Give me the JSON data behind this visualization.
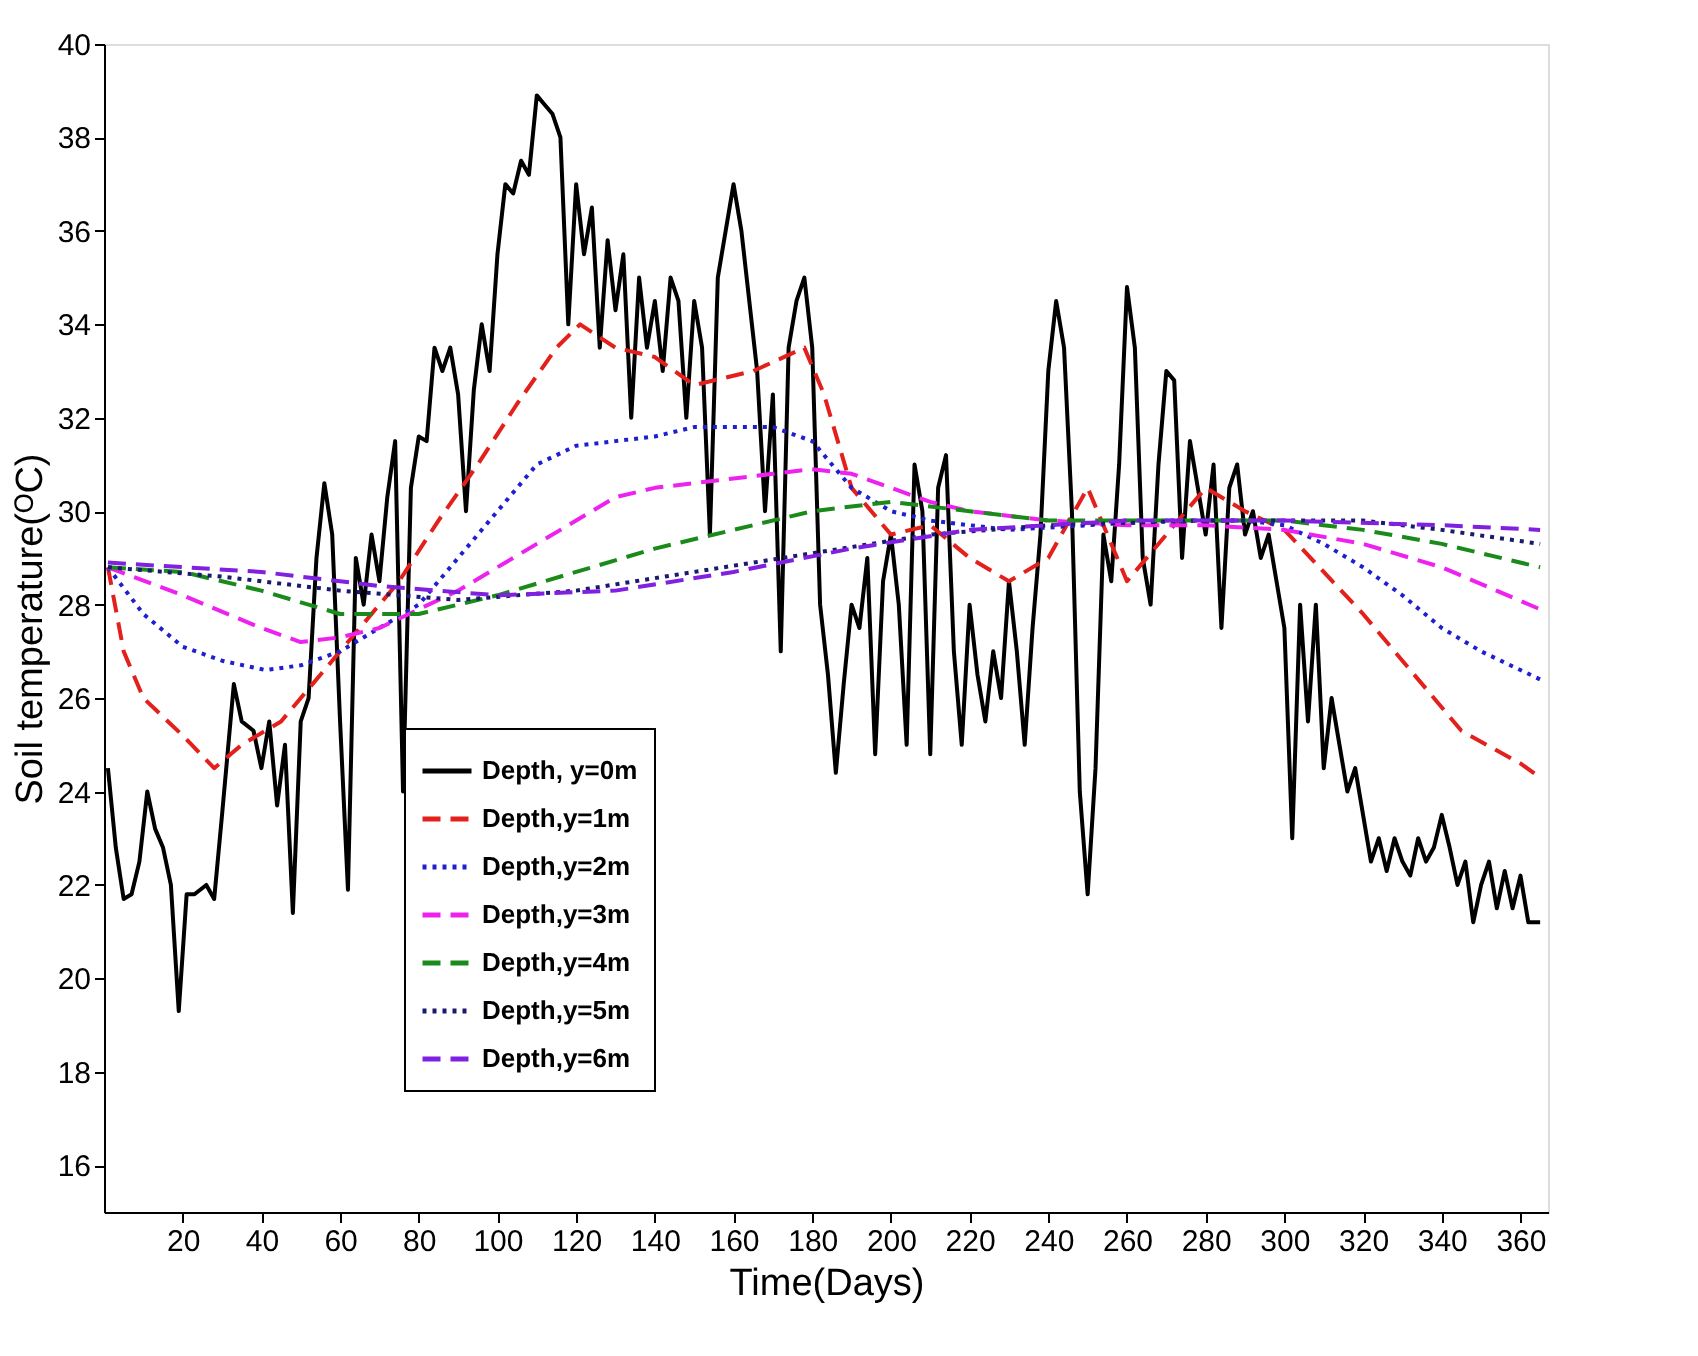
{
  "chart_data": {
    "type": "line",
    "xlabel": "Time(Days)",
    "ylabel": "Soil temperature(ᴼC)",
    "xlim": [
      0,
      367
    ],
    "ylim": [
      15,
      40
    ],
    "xticks": [
      20,
      40,
      60,
      80,
      100,
      120,
      140,
      160,
      180,
      200,
      220,
      240,
      260,
      280,
      300,
      320,
      340,
      360
    ],
    "yticks": [
      16,
      18,
      20,
      22,
      24,
      26,
      28,
      30,
      32,
      34,
      36,
      38,
      40
    ],
    "grid": false,
    "legend": "bottom left",
    "marker": "none",
    "series": [
      {
        "name": "Depth, y=0m",
        "color": "#000000",
        "line_style": "solid",
        "x": [
          1,
          3,
          5,
          7,
          9,
          11,
          13,
          15,
          17,
          19,
          21,
          23,
          26,
          28,
          30,
          33,
          35,
          38,
          40,
          42,
          44,
          46,
          48,
          50,
          52,
          54,
          56,
          58,
          60,
          62,
          64,
          66,
          68,
          70,
          72,
          74,
          76,
          78,
          80,
          82,
          84,
          86,
          88,
          90,
          92,
          94,
          96,
          98,
          100,
          102,
          104,
          106,
          108,
          110,
          112,
          114,
          116,
          118,
          120,
          122,
          124,
          126,
          128,
          130,
          132,
          134,
          136,
          138,
          140,
          142,
          144,
          146,
          148,
          150,
          152,
          154,
          156,
          158,
          160,
          162,
          164,
          166,
          168,
          170,
          172,
          174,
          176,
          178,
          180,
          182,
          184,
          186,
          188,
          190,
          192,
          194,
          196,
          198,
          200,
          202,
          204,
          206,
          208,
          210,
          212,
          214,
          216,
          218,
          220,
          222,
          224,
          226,
          228,
          230,
          232,
          234,
          236,
          238,
          240,
          242,
          244,
          246,
          248,
          250,
          252,
          254,
          256,
          258,
          260,
          262,
          264,
          266,
          268,
          270,
          272,
          274,
          276,
          278,
          280,
          282,
          284,
          286,
          288,
          290,
          292,
          294,
          296,
          298,
          300,
          302,
          304,
          306,
          308,
          310,
          312,
          314,
          316,
          318,
          320,
          322,
          324,
          326,
          328,
          330,
          332,
          334,
          336,
          338,
          340,
          342,
          344,
          346,
          348,
          350,
          352,
          354,
          356,
          358,
          360,
          362,
          365
        ],
        "values": [
          24.5,
          22.8,
          21.7,
          21.8,
          22.5,
          24.0,
          23.2,
          22.8,
          22.0,
          19.3,
          21.8,
          21.8,
          22.0,
          21.7,
          23.5,
          26.3,
          25.5,
          25.3,
          24.5,
          25.5,
          23.7,
          25.0,
          21.4,
          25.5,
          26.0,
          29.0,
          30.6,
          29.5,
          25.5,
          21.9,
          29.0,
          28.0,
          29.5,
          28.5,
          30.3,
          31.5,
          24.0,
          30.5,
          31.6,
          31.5,
          33.5,
          33.0,
          33.5,
          32.5,
          30.0,
          32.6,
          34.0,
          33.0,
          35.5,
          37.0,
          36.8,
          37.5,
          37.2,
          38.9,
          38.7,
          38.5,
          38.0,
          34.0,
          37.0,
          35.5,
          36.5,
          33.5,
          35.8,
          34.3,
          35.5,
          32.0,
          35.0,
          33.5,
          34.5,
          33.0,
          35.0,
          34.5,
          32.0,
          34.5,
          33.5,
          29.5,
          35.0,
          36.0,
          37.0,
          36.0,
          34.5,
          33.0,
          30.0,
          32.5,
          27.0,
          33.5,
          34.5,
          35.0,
          33.5,
          28.0,
          26.5,
          24.4,
          26.3,
          28.0,
          27.5,
          29.0,
          24.8,
          28.5,
          29.5,
          28.0,
          25.0,
          31.0,
          30.0,
          24.8,
          30.5,
          31.2,
          27.0,
          25.0,
          28.0,
          26.5,
          25.5,
          27.0,
          26.0,
          28.5,
          27.0,
          25.0,
          27.5,
          29.5,
          33.0,
          34.5,
          33.5,
          30.0,
          24.0,
          21.8,
          24.5,
          29.5,
          28.5,
          31.0,
          34.8,
          33.5,
          29.0,
          28.0,
          31.0,
          33.0,
          32.8,
          29.0,
          31.5,
          30.5,
          29.5,
          31.0,
          27.5,
          30.5,
          31.0,
          29.5,
          30.0,
          29.0,
          29.5,
          28.5,
          27.5,
          23.0,
          28.0,
          25.5,
          28.0,
          24.5,
          26.0,
          25.0,
          24.0,
          24.5,
          23.5,
          22.5,
          23.0,
          22.3,
          23.0,
          22.5,
          22.2,
          23.0,
          22.5,
          22.8,
          23.5,
          22.8,
          22.0,
          22.5,
          21.2,
          22.0,
          22.5,
          21.5,
          22.3,
          21.5,
          22.2,
          21.2,
          21.2
        ]
      },
      {
        "name": "Depth,y=1m",
        "color": "#e3201b",
        "line_style": "dashed",
        "x": [
          1,
          5,
          10,
          20,
          28,
          35,
          45,
          55,
          65,
          75,
          85,
          95,
          105,
          115,
          121,
          130,
          140,
          150,
          165,
          178,
          183,
          190,
          200,
          210,
          220,
          230,
          240,
          250,
          255,
          260,
          270,
          280,
          290,
          300,
          310,
          320,
          330,
          345,
          360,
          365
        ],
        "values": [
          28.8,
          27.0,
          26.0,
          25.2,
          24.5,
          25.0,
          25.5,
          26.5,
          27.5,
          28.5,
          29.8,
          31.0,
          32.3,
          33.5,
          34.0,
          33.5,
          33.3,
          32.7,
          33.0,
          33.5,
          32.5,
          30.5,
          29.5,
          29.7,
          29.0,
          28.5,
          29.0,
          30.5,
          29.5,
          28.5,
          29.5,
          30.5,
          30.0,
          29.6,
          28.7,
          27.8,
          26.8,
          25.3,
          24.6,
          24.3
        ]
      },
      {
        "name": "Depth,y=2m",
        "color": "#1f1fd0",
        "line_style": "dotted",
        "x": [
          1,
          10,
          20,
          30,
          41,
          50,
          60,
          70,
          80,
          90,
          100,
          110,
          120,
          130,
          140,
          150,
          160,
          170,
          180,
          190,
          200,
          210,
          230,
          250,
          270,
          290,
          300,
          310,
          320,
          330,
          340,
          350,
          365
        ],
        "values": [
          28.8,
          27.8,
          27.1,
          26.8,
          26.6,
          26.7,
          27.0,
          27.5,
          28.0,
          29.0,
          30.0,
          31.0,
          31.4,
          31.5,
          31.6,
          31.8,
          31.8,
          31.8,
          31.5,
          30.5,
          30.0,
          29.8,
          29.6,
          29.7,
          29.8,
          29.8,
          29.7,
          29.3,
          28.8,
          28.2,
          27.5,
          27.0,
          26.4
        ]
      },
      {
        "name": "Depth,y=3m",
        "color": "#ee22ee",
        "line_style": "dashed",
        "x": [
          1,
          20,
          40,
          50,
          60,
          70,
          80,
          90,
          100,
          110,
          120,
          130,
          140,
          150,
          160,
          170,
          180,
          190,
          200,
          210,
          220,
          240,
          260,
          280,
          300,
          320,
          340,
          365
        ],
        "values": [
          28.8,
          28.2,
          27.5,
          27.2,
          27.3,
          27.5,
          27.9,
          28.3,
          28.8,
          29.3,
          29.8,
          30.3,
          30.5,
          30.6,
          30.7,
          30.8,
          30.9,
          30.8,
          30.5,
          30.2,
          30.0,
          29.8,
          29.7,
          29.7,
          29.6,
          29.3,
          28.8,
          27.9
        ]
      },
      {
        "name": "Depth,y=4m",
        "color": "#1a8a1a",
        "line_style": "dashed",
        "x": [
          1,
          20,
          40,
          60,
          80,
          100,
          120,
          140,
          160,
          180,
          200,
          220,
          240,
          280,
          300,
          320,
          340,
          365
        ],
        "values": [
          28.8,
          28.7,
          28.3,
          27.8,
          27.8,
          28.2,
          28.7,
          29.2,
          29.6,
          30.0,
          30.2,
          30.0,
          29.8,
          29.8,
          29.8,
          29.6,
          29.3,
          28.8
        ]
      },
      {
        "name": "Depth,y=5m",
        "color": "#1a1a6e",
        "line_style": "dotted",
        "x": [
          1,
          30,
          60,
          90,
          120,
          150,
          180,
          210,
          240,
          280,
          320,
          340,
          365
        ],
        "values": [
          28.8,
          28.6,
          28.3,
          28.1,
          28.3,
          28.7,
          29.1,
          29.5,
          29.7,
          29.8,
          29.8,
          29.6,
          29.3
        ]
      },
      {
        "name": "Depth,y=6m",
        "color": "#8020e0",
        "line_style": "dashed",
        "x": [
          1,
          40,
          70,
          100,
          130,
          160,
          190,
          220,
          260,
          300,
          340,
          365
        ],
        "values": [
          28.9,
          28.7,
          28.4,
          28.2,
          28.3,
          28.7,
          29.2,
          29.6,
          29.8,
          29.8,
          29.7,
          29.6
        ]
      }
    ]
  }
}
